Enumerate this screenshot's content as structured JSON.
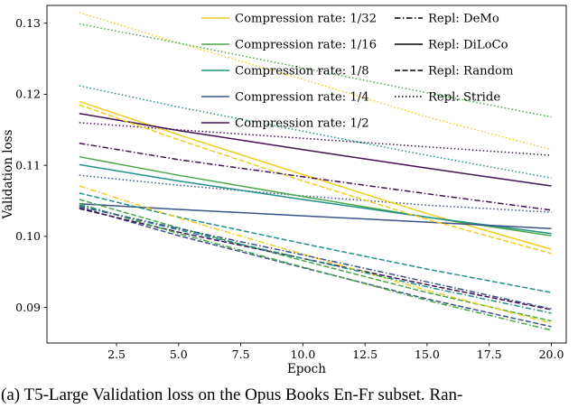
{
  "figure": {
    "caption": "(a) T5-Large Validation loss on the Opus Books En-Fr subset. Ran-"
  },
  "chart_data": {
    "type": "line",
    "title": "",
    "xlabel": "Epoch",
    "ylabel": "Validation loss",
    "xlim": [
      -0.3,
      20.6
    ],
    "ylim": [
      0.085,
      0.1325
    ],
    "xticks": [
      2.5,
      5.0,
      7.5,
      10.0,
      12.5,
      15.0,
      17.5,
      20.0
    ],
    "xtick_labels": [
      "2.5",
      "5.0",
      "7.5",
      "10.0",
      "12.5",
      "15.0",
      "17.5",
      "20.0"
    ],
    "yticks": [
      0.09,
      0.1,
      0.11,
      0.12,
      0.13
    ],
    "ytick_labels": [
      "0.09",
      "0.10",
      "0.11",
      "0.12",
      "0.13"
    ],
    "grid": false,
    "legend_position": "upper center, two columns, no frame",
    "x": [
      1,
      5,
      10,
      15,
      20
    ],
    "colors": {
      "1/32": "#f0cd1e",
      "1/16": "#48a848",
      "1/8": "#21918c",
      "1/4": "#3b528b",
      "1/2": "#431253"
    },
    "line_styles": {
      "DeMo": "dashdot",
      "DiLoCo": "solid",
      "Random": "dashed",
      "Stride": "dotted"
    },
    "legend": {
      "compression": [
        {
          "label": "Compression rate: 1/32",
          "color": "#f0cd1e"
        },
        {
          "label": "Compression rate: 1/16",
          "color": "#48a848"
        },
        {
          "label": "Compression rate: 1/8",
          "color": "#21918c"
        },
        {
          "label": "Compression rate: 1/4",
          "color": "#3b528b"
        },
        {
          "label": "Compression rate: 1/2",
          "color": "#431253"
        }
      ],
      "replication": [
        {
          "label": "Repl: DeMo",
          "style": "dashdot"
        },
        {
          "label": "Repl: DiLoCo",
          "style": "solid"
        },
        {
          "label": "Repl: Random",
          "style": "dashed"
        },
        {
          "label": "Repl: Stride",
          "style": "dotted"
        }
      ]
    },
    "series": [
      {
        "compression": "1/32",
        "replication": "Stride",
        "style": "dotted",
        "color": "#f0cd1e",
        "values": [
          0.1315,
          0.1272,
          0.1221,
          0.1168,
          0.1122
        ]
      },
      {
        "compression": "1/16",
        "replication": "Stride",
        "style": "dotted",
        "color": "#48a848",
        "values": [
          0.1299,
          0.1272,
          0.1237,
          0.1202,
          0.1168
        ]
      },
      {
        "compression": "1/8",
        "replication": "Stride",
        "style": "dotted",
        "color": "#21918c",
        "values": [
          0.1212,
          0.1182,
          0.1148,
          0.1114,
          0.1082
        ]
      },
      {
        "compression": "1/4",
        "replication": "Stride",
        "style": "dotted",
        "color": "#3b528b",
        "values": [
          0.1086,
          0.1072,
          0.1057,
          0.1044,
          0.1034
        ]
      },
      {
        "compression": "1/2",
        "replication": "Stride",
        "style": "dotted",
        "color": "#431253",
        "values": [
          0.116,
          0.115,
          0.1138,
          0.1126,
          0.1114
        ]
      },
      {
        "compression": "1/32",
        "replication": "DiLoCo",
        "style": "solid",
        "color": "#f0cd1e",
        "values": [
          0.119,
          0.1143,
          0.1087,
          0.1032,
          0.0982
        ]
      },
      {
        "compression": "1/16",
        "replication": "DiLoCo",
        "style": "solid",
        "color": "#48a848",
        "values": [
          0.1112,
          0.1086,
          0.1056,
          0.1027,
          0.1001
        ]
      },
      {
        "compression": "1/8",
        "replication": "DiLoCo",
        "style": "solid",
        "color": "#21918c",
        "values": [
          0.1101,
          0.1078,
          0.1052,
          0.1027,
          0.1004
        ]
      },
      {
        "compression": "1/4",
        "replication": "DiLoCo",
        "style": "solid",
        "color": "#3b528b",
        "values": [
          0.1046,
          0.1038,
          0.1029,
          0.102,
          0.1011
        ]
      },
      {
        "compression": "1/2",
        "replication": "DiLoCo",
        "style": "solid",
        "color": "#431253",
        "values": [
          0.1173,
          0.1149,
          0.1122,
          0.1096,
          0.1071
        ]
      },
      {
        "compression": "1/32",
        "replication": "Random",
        "style": "dashed",
        "color": "#f0cd1e",
        "values": [
          0.1185,
          0.1136,
          0.1078,
          0.1024,
          0.0976
        ]
      },
      {
        "compression": "1/16",
        "replication": "Random",
        "style": "dashed",
        "color": "#48a848",
        "values": [
          0.1052,
          0.1012,
          0.0966,
          0.0921,
          0.0881
        ]
      },
      {
        "compression": "1/8",
        "replication": "Random",
        "style": "dashed",
        "color": "#21918c",
        "values": [
          0.1061,
          0.1027,
          0.099,
          0.0954,
          0.0921
        ]
      },
      {
        "compression": "1/4",
        "replication": "Random",
        "style": "dashed",
        "color": "#3b528b",
        "values": [
          0.1041,
          0.1001,
          0.0956,
          0.0912,
          0.0873
        ]
      },
      {
        "compression": "1/2",
        "replication": "Random",
        "style": "dashed",
        "color": "#431253",
        "values": [
          0.1039,
          0.1006,
          0.0969,
          0.0932,
          0.0897
        ]
      },
      {
        "compression": "1/32",
        "replication": "DeMo",
        "style": "dashdot",
        "color": "#f0cd1e",
        "values": [
          0.1071,
          0.1026,
          0.0975,
          0.0924,
          0.0878
        ]
      },
      {
        "compression": "1/16",
        "replication": "DeMo",
        "style": "dashdot",
        "color": "#48a848",
        "values": [
          0.1046,
          0.1004,
          0.0957,
          0.091,
          0.0868
        ]
      },
      {
        "compression": "1/8",
        "replication": "DeMo",
        "style": "dashdot",
        "color": "#21918c",
        "values": [
          0.1044,
          0.1009,
          0.0969,
          0.0929,
          0.0892
        ]
      },
      {
        "compression": "1/4",
        "replication": "DeMo",
        "style": "dashdot",
        "color": "#3b528b",
        "values": [
          0.1042,
          0.1011,
          0.0974,
          0.0936,
          0.0898
        ]
      },
      {
        "compression": "1/2",
        "replication": "DeMo",
        "style": "dashdot",
        "color": "#431253",
        "values": [
          0.1131,
          0.1108,
          0.1084,
          0.106,
          0.1037
        ]
      }
    ]
  }
}
